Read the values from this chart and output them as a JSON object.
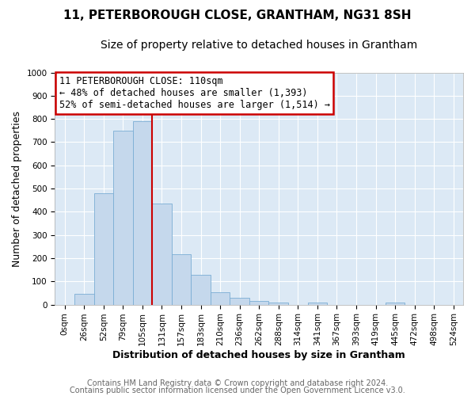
{
  "title": "11, PETERBOROUGH CLOSE, GRANTHAM, NG31 8SH",
  "subtitle": "Size of property relative to detached houses in Grantham",
  "xlabel": "Distribution of detached houses by size in Grantham",
  "ylabel": "Number of detached properties",
  "bar_labels": [
    "0sqm",
    "26sqm",
    "52sqm",
    "79sqm",
    "105sqm",
    "131sqm",
    "157sqm",
    "183sqm",
    "210sqm",
    "236sqm",
    "262sqm",
    "288sqm",
    "314sqm",
    "341sqm",
    "367sqm",
    "393sqm",
    "419sqm",
    "445sqm",
    "472sqm",
    "498sqm",
    "524sqm"
  ],
  "bar_values": [
    0,
    45,
    480,
    750,
    790,
    435,
    218,
    128,
    52,
    30,
    15,
    10,
    0,
    8,
    0,
    0,
    0,
    10,
    0,
    0,
    0
  ],
  "bar_color": "#c5d8ec",
  "bar_edge_color": "#7aadd4",
  "vline_color": "#cc0000",
  "annotation_title": "11 PETERBOROUGH CLOSE: 110sqm",
  "annotation_line1": "← 48% of detached houses are smaller (1,393)",
  "annotation_line2": "52% of semi-detached houses are larger (1,514) →",
  "annotation_box_edge": "#cc0000",
  "ylim": [
    0,
    1000
  ],
  "yticks": [
    0,
    100,
    200,
    300,
    400,
    500,
    600,
    700,
    800,
    900,
    1000
  ],
  "footer1": "Contains HM Land Registry data © Crown copyright and database right 2024.",
  "footer2": "Contains public sector information licensed under the Open Government Licence v3.0.",
  "bg_color": "#ffffff",
  "plot_bg_color": "#dce9f5",
  "grid_color": "#ffffff",
  "title_fontsize": 11,
  "subtitle_fontsize": 10,
  "xlabel_fontsize": 9,
  "ylabel_fontsize": 9,
  "tick_fontsize": 7.5,
  "annotation_fontsize": 8.5,
  "footer_fontsize": 7
}
